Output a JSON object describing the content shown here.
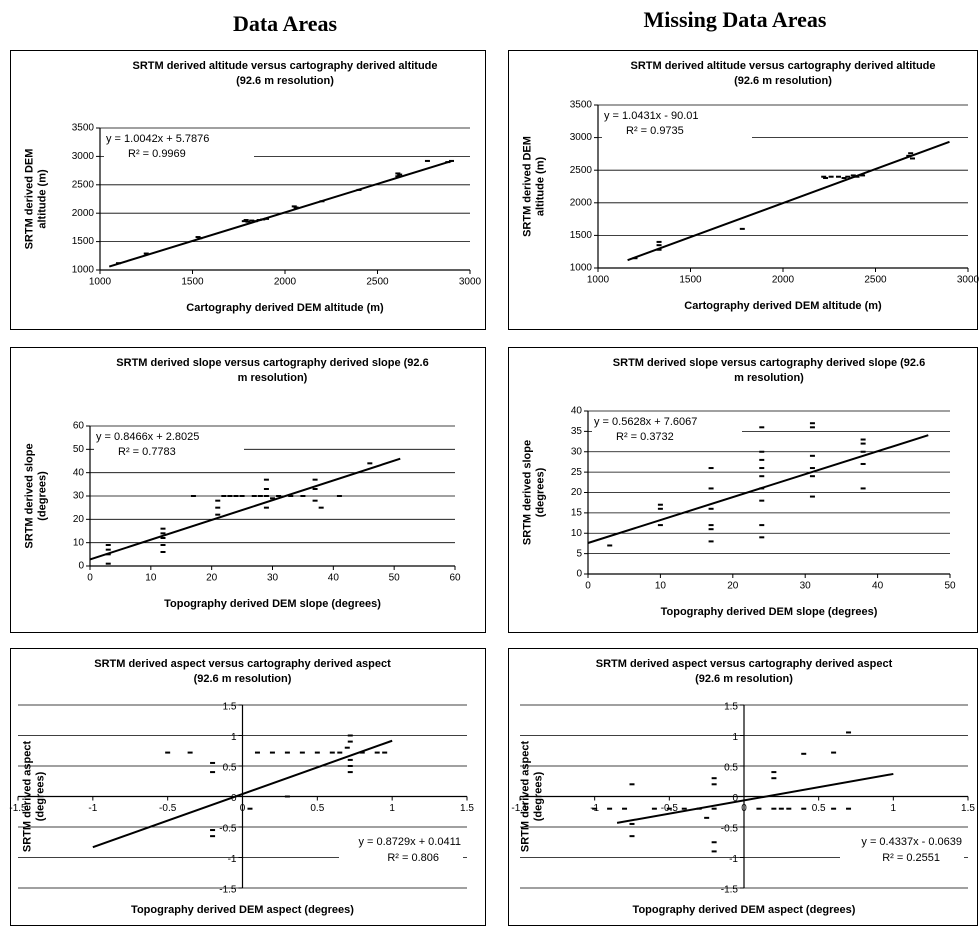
{
  "column_titles": [
    "Data Areas",
    "Missing Data Areas"
  ],
  "chart_data": [
    {
      "type": "scatter",
      "title": [
        "SRTM derived altitude versus cartography derived altitude",
        "(92.6 m resolution)"
      ],
      "x_label": [
        "Cartography derived DEM altitude (m)"
      ],
      "y_label": [
        "SRTM derived DEM",
        "altitude (m)"
      ],
      "x": [
        1100,
        1250,
        1530,
        1540,
        1780,
        1790,
        1800,
        1820,
        1840,
        1860,
        1880,
        1900,
        2050,
        2060,
        2200,
        2400,
        2610,
        2610,
        2620,
        2770,
        2880,
        2900
      ],
      "values": [
        1120,
        1290,
        1580,
        1560,
        1860,
        1880,
        1850,
        1870,
        1860,
        1880,
        1890,
        1900,
        2120,
        2100,
        2210,
        2410,
        2700,
        2650,
        2680,
        2920,
        2900,
        2920
      ],
      "color": "#000000",
      "xlim": [
        1000,
        3000
      ],
      "xticks": [
        1000,
        1500,
        2000,
        2500,
        3000
      ],
      "ylim": [
        1000,
        3500
      ],
      "yticks": [
        1000,
        1500,
        2000,
        2500,
        3000,
        3500
      ],
      "grid": true,
      "axes_cross_zero": false,
      "trendline": {
        "slope": 1.0042,
        "intercept": 5.7876,
        "x": [
          1050,
          2900
        ]
      },
      "equation": "y = 1.0042x + 5.7876",
      "r_squared": "R² = 0.9969",
      "annotation_corner": "top-left"
    },
    {
      "type": "scatter",
      "title": [
        "SRTM derived altitude versus cartography derived altitude",
        "(92.6 m resolution)"
      ],
      "x_label": [
        "Cartography derived DEM altitude (m)"
      ],
      "y_label": [
        "SRTM derived DEM",
        "altitude (m)"
      ],
      "x": [
        1200,
        1330,
        1330,
        1330,
        1780,
        2220,
        2230,
        2260,
        2300,
        2330,
        2350,
        2380,
        2400,
        2430,
        2680,
        2690,
        2700
      ],
      "values": [
        1150,
        1280,
        1350,
        1400,
        1600,
        2400,
        2380,
        2400,
        2400,
        2380,
        2400,
        2420,
        2400,
        2420,
        2720,
        2760,
        2680
      ],
      "color": "#000000",
      "xlim": [
        1000,
        3000
      ],
      "xticks": [
        1000,
        1500,
        2000,
        2500,
        3000
      ],
      "ylim": [
        1000,
        3500
      ],
      "yticks": [
        1000,
        1500,
        2000,
        2500,
        3000,
        3500
      ],
      "grid": true,
      "axes_cross_zero": false,
      "trendline": {
        "slope": 1.0431,
        "intercept": -90.01,
        "x": [
          1160,
          2900
        ]
      },
      "equation": "y = 1.0431x - 90.01",
      "r_squared": "R² = 0.9735",
      "annotation_corner": "top-left"
    },
    {
      "type": "scatter",
      "title": [
        "SRTM derived slope versus cartography derived slope (92.6",
        "m resolution)"
      ],
      "x_label": [
        "Topography derived DEM slope (degrees)"
      ],
      "y_label": [
        "SRTM derived slope",
        "(degrees)"
      ],
      "x": [
        3,
        3,
        3,
        3,
        12,
        12,
        12,
        12,
        12,
        17,
        21,
        21,
        21,
        22,
        23,
        24,
        25,
        27,
        28,
        29,
        29,
        29,
        29,
        30,
        31,
        33,
        35,
        37,
        37,
        37,
        38,
        41,
        46
      ],
      "values": [
        1,
        5,
        7,
        9,
        6,
        9,
        12,
        14,
        16,
        30,
        22,
        25,
        28,
        30,
        30,
        30,
        30,
        30,
        30,
        25,
        30,
        33,
        37,
        29,
        30,
        30,
        30,
        28,
        33,
        37,
        25,
        30,
        44
      ],
      "color": "#000000",
      "xlim": [
        0,
        60
      ],
      "xticks": [
        0,
        10,
        20,
        30,
        40,
        50,
        60
      ],
      "ylim": [
        0,
        60
      ],
      "yticks": [
        0,
        10,
        20,
        30,
        40,
        50,
        60
      ],
      "grid": true,
      "axes_cross_zero": false,
      "trendline": {
        "slope": 0.8466,
        "intercept": 2.8025,
        "x": [
          0,
          51
        ]
      },
      "equation": "y = 0.8466x + 2.8025",
      "r_squared": "R² = 0.7783",
      "annotation_corner": "top-left"
    },
    {
      "type": "scatter",
      "title": [
        "SRTM derived slope versus cartography derived slope (92.6",
        "m resolution)"
      ],
      "x_label": [
        "Topography derived DEM slope (degrees)"
      ],
      "y_label": [
        "SRTM derived slope",
        "(degrees)"
      ],
      "x": [
        3,
        10,
        10,
        10,
        17,
        17,
        17,
        17,
        17,
        17,
        17,
        17,
        24,
        24,
        24,
        24,
        24,
        24,
        24,
        24,
        24,
        31,
        31,
        31,
        31,
        31,
        31,
        38,
        38,
        38,
        38,
        38
      ],
      "values": [
        7,
        12,
        16,
        17,
        8,
        11,
        12,
        16,
        21,
        26,
        33,
        34,
        9,
        12,
        18,
        21,
        24,
        26,
        28,
        30,
        36,
        19,
        24,
        26,
        29,
        36,
        37,
        21,
        27,
        30,
        32,
        33
      ],
      "color": "#000000",
      "xlim": [
        0,
        50
      ],
      "xticks": [
        0,
        10,
        20,
        30,
        40,
        50
      ],
      "ylim": [
        0,
        40
      ],
      "yticks": [
        0,
        5,
        10,
        15,
        20,
        25,
        30,
        35,
        40
      ],
      "grid": true,
      "axes_cross_zero": false,
      "trendline": {
        "slope": 0.5628,
        "intercept": 7.6067,
        "x": [
          0,
          47
        ]
      },
      "equation": "y = 0.5628x + 7.6067",
      "r_squared": "R² = 0.3732",
      "annotation_corner": "top-left"
    },
    {
      "type": "scatter",
      "title": [
        "SRTM derived aspect versus cartography derived aspect",
        "(92.6 m resolution)"
      ],
      "x_label": [
        "Topography derived DEM aspect (degrees)"
      ],
      "y_label": [
        "SRTM derived aspect",
        "(degrees)"
      ],
      "x": [
        -0.5,
        -0.35,
        -0.2,
        -0.2,
        -0.2,
        -0.2,
        0.05,
        0.1,
        0.2,
        0.3,
        0.3,
        0.4,
        0.5,
        0.6,
        0.65,
        0.7,
        0.72,
        0.72,
        0.72,
        0.72,
        0.72,
        0.8,
        0.9,
        0.95
      ],
      "values": [
        0.72,
        0.72,
        0.4,
        0.55,
        -0.55,
        -0.65,
        -0.2,
        0.72,
        0.72,
        0.72,
        0,
        0.72,
        0.72,
        0.72,
        0.72,
        0.8,
        0.4,
        0.5,
        0.6,
        0.9,
        1,
        0.72,
        0.72,
        0.72
      ],
      "color": "#000000",
      "xlim": [
        -1.5,
        1.5
      ],
      "xticks": [
        -1.5,
        -1,
        -0.5,
        0,
        0.5,
        1,
        1.5
      ],
      "ylim": [
        -1.5,
        1.5
      ],
      "yticks": [
        -1.5,
        -1,
        -0.5,
        0,
        0.5,
        1,
        1.5
      ],
      "grid": true,
      "axes_cross_zero": true,
      "trendline": {
        "slope": 0.8729,
        "intercept": 0.0411,
        "x": [
          -1,
          1
        ]
      },
      "equation": "y = 0.8729x + 0.0411",
      "r_squared": "R² = 0.806",
      "annotation_corner": "bottom-right"
    },
    {
      "type": "scatter",
      "title": [
        "SRTM derived aspect versus cartography derived aspect",
        "(92.6 m resolution)"
      ],
      "x_label": [
        "Topography derived DEM aspect (degrees)"
      ],
      "y_label": [
        "SRTM derived aspect",
        "(degrees)"
      ],
      "x": [
        -1,
        -0.9,
        -0.8,
        -0.75,
        -0.75,
        -0.75,
        -0.6,
        -0.5,
        -0.4,
        -0.3,
        -0.25,
        -0.2,
        -0.2,
        -0.2,
        -0.2,
        -0.2,
        0.1,
        0.2,
        0.2,
        0.2,
        0.25,
        0.3,
        0.4,
        0.4,
        0.6,
        0.6,
        0.7,
        0.7
      ],
      "values": [
        -0.2,
        -0.2,
        -0.2,
        0.2,
        -0.45,
        -0.65,
        -0.2,
        -0.2,
        -0.2,
        -0.2,
        -0.35,
        -0.2,
        0.3,
        0.2,
        -0.75,
        -0.9,
        -0.2,
        -0.2,
        0.4,
        0.3,
        -0.2,
        -0.2,
        -0.2,
        0.7,
        0.72,
        -0.2,
        1.05,
        -0.2
      ],
      "color": "#000000",
      "xlim": [
        -1.5,
        1.5
      ],
      "xticks": [
        -1.5,
        -1,
        -0.5,
        0,
        0.5,
        1,
        1.5
      ],
      "ylim": [
        -1.5,
        1.5
      ],
      "yticks": [
        -1.5,
        -1,
        -0.5,
        0,
        0.5,
        1,
        1.5
      ],
      "grid": true,
      "axes_cross_zero": true,
      "trendline": {
        "slope": 0.4337,
        "intercept": -0.0639,
        "x": [
          -0.85,
          1
        ]
      },
      "equation": "y = 0.4337x - 0.0639",
      "r_squared": "R² = 0.2551",
      "annotation_corner": "bottom-right"
    }
  ]
}
